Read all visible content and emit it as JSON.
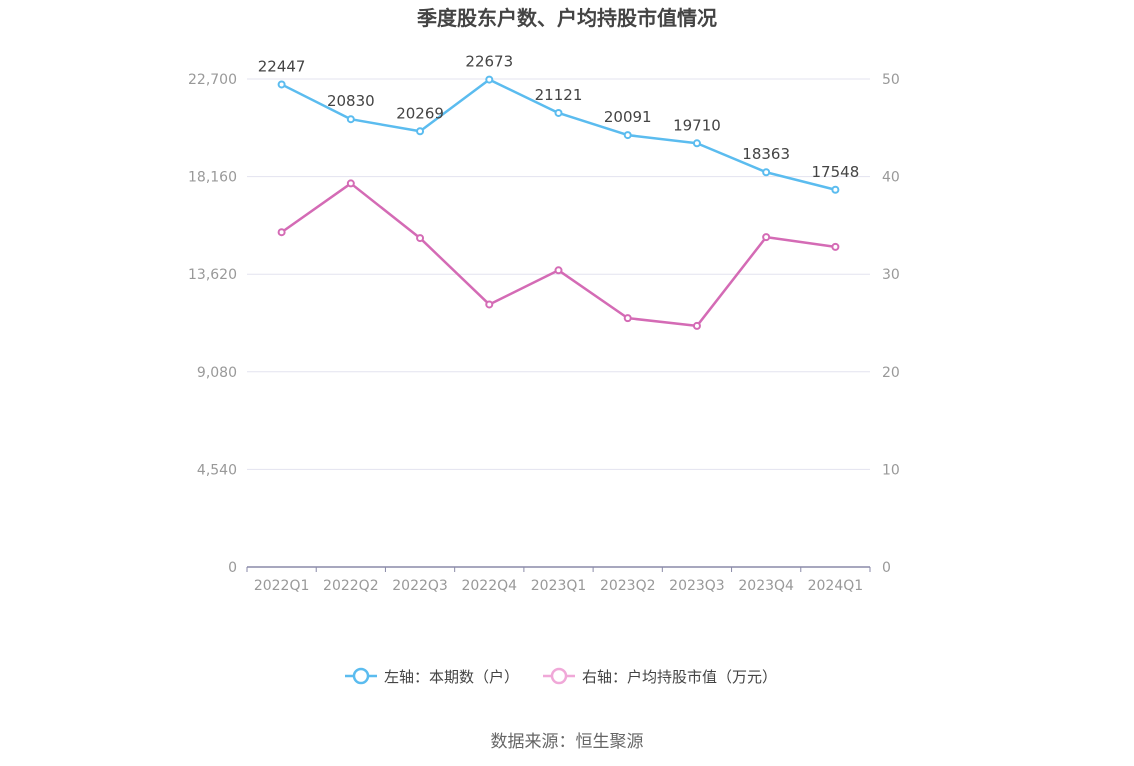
{
  "chart_data": {
    "type": "line",
    "title": "季度股东户数、户均持股市值情况",
    "categories": [
      "2022Q1",
      "2022Q2",
      "2022Q3",
      "2022Q4",
      "2023Q1",
      "2023Q2",
      "2023Q3",
      "2023Q4",
      "2024Q1"
    ],
    "series": [
      {
        "name": "左轴：本期数（户）",
        "axis": "left",
        "color": "#5bbcef",
        "values": [
          22447,
          20830,
          20269,
          22673,
          21121,
          20091,
          19710,
          18363,
          17548
        ],
        "show_labels": true
      },
      {
        "name": "右轴：户均持股市值（万元）",
        "axis": "right",
        "color": "#d46bb5",
        "values": [
          34.3,
          39.3,
          33.7,
          26.9,
          30.4,
          25.5,
          24.7,
          33.8,
          32.8
        ],
        "show_labels": false
      }
    ],
    "left_axis": {
      "ylim": [
        0,
        22700
      ],
      "ticks": [
        "0",
        "4,540",
        "9,080",
        "13,620",
        "18,160",
        "22,700"
      ]
    },
    "right_axis": {
      "ylim": [
        0,
        50
      ],
      "ticks": [
        "0",
        "10",
        "20",
        "30",
        "40",
        "50"
      ]
    },
    "grid": true,
    "legend_position": "bottom"
  },
  "source": "数据来源：恒生聚源"
}
